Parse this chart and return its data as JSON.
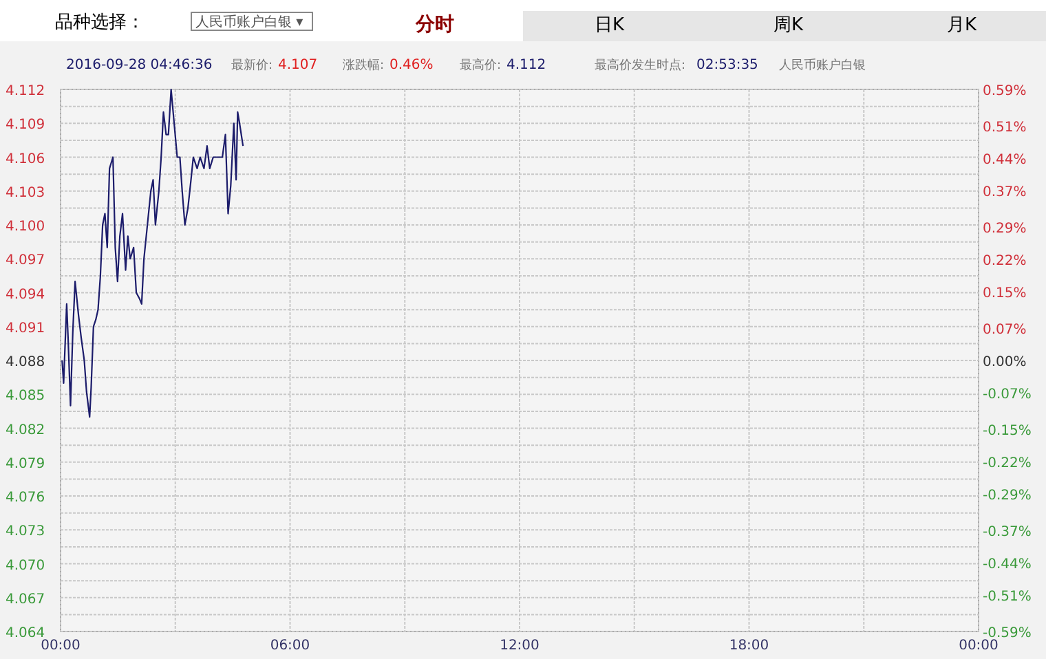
{
  "chart_data": {
    "type": "line",
    "title": "人民币账户白银",
    "annotations": [
      "品种选择：",
      "人民币账户白银 ▾",
      "分时",
      "日K",
      "周K",
      "月K",
      "2016-09-28 04:46:36",
      "最新价:",
      "4.107",
      "涨跌幅:",
      "0.46%",
      "最高价:",
      "4.112",
      "最高价发生时点:",
      "02:53:35"
    ],
    "series": [
      {
        "color": "#1c1c6b",
        "x": [
          0.04,
          0.08,
          0.16,
          0.2,
          0.26,
          0.32,
          0.38,
          0.47,
          0.54,
          0.62,
          0.68,
          0.76,
          0.8,
          0.86,
          0.92,
          0.98,
          1.04,
          1.1,
          1.16,
          1.22,
          1.28,
          1.37,
          1.43,
          1.49,
          1.55,
          1.62,
          1.7,
          1.76,
          1.82,
          1.91,
          1.98,
          2.06,
          2.12,
          2.18,
          2.27,
          2.36,
          2.42,
          2.48,
          2.57,
          2.63,
          2.69,
          2.76,
          2.82,
          2.89,
          2.97,
          3.05,
          3.12,
          3.18,
          3.25,
          3.33,
          3.41,
          3.47,
          3.57,
          3.65,
          3.75,
          3.83,
          3.9,
          3.99,
          4.11,
          4.23,
          4.31,
          4.38,
          4.45,
          4.53,
          4.59,
          4.63,
          4.68,
          4.77
        ],
        "values": [
          4.088,
          4.086,
          4.093,
          4.0897,
          4.084,
          4.0905,
          4.095,
          4.092,
          4.09,
          4.088,
          4.0852,
          4.083,
          4.0856,
          4.091,
          4.0916,
          4.0925,
          4.0954,
          4.1,
          4.101,
          4.098,
          4.105,
          4.106,
          4.098,
          4.095,
          4.099,
          4.101,
          4.096,
          4.099,
          4.097,
          4.098,
          4.094,
          4.0935,
          4.093,
          4.097,
          4.1,
          4.103,
          4.104,
          4.1,
          4.103,
          4.106,
          4.11,
          4.108,
          4.108,
          4.112,
          4.109,
          4.106,
          4.106,
          4.103,
          4.1,
          4.1015,
          4.104,
          4.106,
          4.105,
          4.106,
          4.105,
          4.107,
          4.105,
          4.106,
          4.106,
          4.106,
          4.108,
          4.101,
          4.1035,
          4.109,
          4.104,
          4.11,
          4.109,
          4.107
        ]
      }
    ],
    "xlim": [
      0,
      24
    ],
    "xticks": [
      {
        "value": 0,
        "label": "00:00"
      },
      {
        "value": 3,
        "label": null
      },
      {
        "value": 6,
        "label": "06:00"
      },
      {
        "value": 9,
        "label": null
      },
      {
        "value": 12,
        "label": "12:00"
      },
      {
        "value": 15,
        "label": null
      },
      {
        "value": 18,
        "label": "18:00"
      },
      {
        "value": 21,
        "label": null
      },
      {
        "value": 24,
        "label": "00:00"
      }
    ],
    "ylim": [
      4.064,
      4.112
    ],
    "yticks": [
      {
        "value": 4.112,
        "label": "4.112"
      },
      {
        "value": 4.1105,
        "label": null
      },
      {
        "value": 4.109,
        "label": "4.109"
      },
      {
        "value": 4.1075,
        "label": null
      },
      {
        "value": 4.106,
        "label": "4.106"
      },
      {
        "value": 4.1045,
        "label": null
      },
      {
        "value": 4.103,
        "label": "4.103"
      },
      {
        "value": 4.1015,
        "label": null
      },
      {
        "value": 4.1,
        "label": "4.100"
      },
      {
        "value": 4.0985,
        "label": null
      },
      {
        "value": 4.097,
        "label": "4.097"
      },
      {
        "value": 4.0955,
        "label": null
      },
      {
        "value": 4.094,
        "label": "4.094"
      },
      {
        "value": 4.0925,
        "label": null
      },
      {
        "value": 4.091,
        "label": "4.091"
      },
      {
        "value": 4.0895,
        "label": null
      },
      {
        "value": 4.088,
        "label": "4.088"
      },
      {
        "value": 4.0865,
        "label": null
      },
      {
        "value": 4.085,
        "label": "4.085"
      },
      {
        "value": 4.0835,
        "label": null
      },
      {
        "value": 4.082,
        "label": "4.082"
      },
      {
        "value": 4.0805,
        "label": null
      },
      {
        "value": 4.079,
        "label": "4.079"
      },
      {
        "value": 4.0775,
        "label": null
      },
      {
        "value": 4.076,
        "label": "4.076"
      },
      {
        "value": 4.0745,
        "label": null
      },
      {
        "value": 4.073,
        "label": "4.073"
      },
      {
        "value": 4.0715,
        "label": null
      },
      {
        "value": 4.07,
        "label": "4.070"
      },
      {
        "value": 4.0685,
        "label": null
      },
      {
        "value": 4.067,
        "label": "4.067"
      },
      {
        "value": 4.0655,
        "label": null
      },
      {
        "value": 4.064,
        "label": "4.064"
      }
    ],
    "y2lim": [
      -0.59,
      0.59
    ],
    "y2ticks": [
      {
        "value": 0.59,
        "label": "0.59%"
      },
      {
        "value": 0.51,
        "label": "0.51%"
      },
      {
        "value": 0.44,
        "label": "0.44%"
      },
      {
        "value": 0.37,
        "label": "0.37%"
      },
      {
        "value": 0.29,
        "label": "0.29%"
      },
      {
        "value": 0.22,
        "label": "0.22%"
      },
      {
        "value": 0.15,
        "label": "0.15%"
      },
      {
        "value": 0.07,
        "label": "0.07%"
      },
      {
        "value": 0,
        "label": "0.00%"
      },
      {
        "value": -0.07,
        "label": "-0.07%"
      },
      {
        "value": -0.15,
        "label": "-0.15%"
      },
      {
        "value": -0.22,
        "label": "-0.22%"
      },
      {
        "value": -0.29,
        "label": "-0.29%"
      },
      {
        "value": -0.37,
        "label": "-0.37%"
      },
      {
        "value": -0.44,
        "label": "-0.44%"
      },
      {
        "value": -0.51,
        "label": "-0.51%"
      },
      {
        "value": -0.59,
        "label": "-0.59%"
      }
    ],
    "grid": true,
    "marker": "none",
    "line_style": "solid"
  }
}
